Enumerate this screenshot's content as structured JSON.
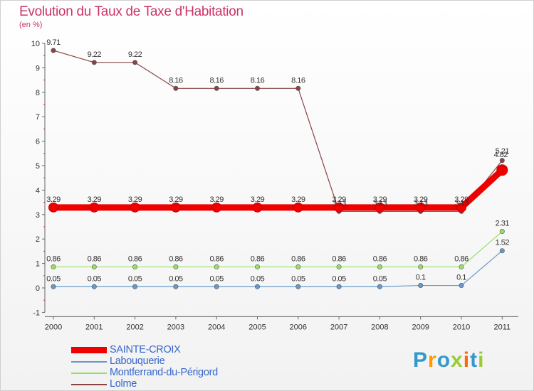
{
  "title": "Evolution du Taux de Taxe d'Habitation",
  "subtitle": "(en %)",
  "brand": {
    "text": "Proxiti",
    "letters": [
      "P",
      "r",
      "o",
      "x",
      "i",
      "t",
      "i"
    ],
    "colors": [
      "#3399cc",
      "#ff9900",
      "#3399cc",
      "#99cc33",
      "#ff6600",
      "#3399cc",
      "#99cc33"
    ]
  },
  "chart_data": {
    "type": "line",
    "title": "Evolution du Taux de Taxe d'Habitation",
    "ylabel": "(en %)",
    "xlabel": "",
    "ylim": [
      -1,
      10
    ],
    "yticks": [
      "-1",
      "0",
      "1",
      "2",
      "3",
      "4",
      "5",
      "6",
      "7",
      "8",
      "9",
      "10"
    ],
    "categories": [
      "2000",
      "2001",
      "2002",
      "2003",
      "2004",
      "2005",
      "2006",
      "2007",
      "2008",
      "2009",
      "2010",
      "2011"
    ],
    "grid": false,
    "legend_position": "bottom-left",
    "series": [
      {
        "name": "SAINTE-CROIX",
        "color": "#ee0000",
        "values": [
          3.29,
          3.29,
          3.29,
          3.29,
          3.29,
          3.29,
          3.29,
          3.29,
          3.29,
          3.29,
          3.29,
          4.82
        ],
        "labels": [
          "3.29",
          "3.29",
          "3.29",
          "3.29",
          "3.29",
          "3.29",
          "3.29",
          "3.29",
          "3.29",
          "3.29",
          "3.29",
          "4.82"
        ]
      },
      {
        "name": "Labouquerie",
        "color": "#6699cc",
        "values": [
          0.05,
          0.05,
          0.05,
          0.05,
          0.05,
          0.05,
          0.05,
          0.05,
          0.05,
          0.1,
          0.1,
          1.52
        ],
        "labels": [
          "0.05",
          "0.05",
          "0.05",
          "0.05",
          "0.05",
          "0.05",
          "0.05",
          "0.05",
          "0.05",
          "0.1",
          "0.1",
          "1.52"
        ]
      },
      {
        "name": "Montferrand-du-Périgord",
        "color": "#99dd66",
        "values": [
          0.86,
          0.86,
          0.86,
          0.86,
          0.86,
          0.86,
          0.86,
          0.86,
          0.86,
          0.86,
          0.86,
          2.31
        ],
        "labels": [
          "0.86",
          "0.86",
          "0.86",
          "0.86",
          "0.86",
          "0.86",
          "0.86",
          "0.86",
          "0.86",
          "0.86",
          "0.86",
          "2.31"
        ]
      },
      {
        "name": "Lolme",
        "color": "#884444",
        "values": [
          9.71,
          9.22,
          9.22,
          8.16,
          8.16,
          8.16,
          8.16,
          3.13,
          3.13,
          3.13,
          3.13,
          5.21
        ],
        "labels": [
          "9.71",
          "9.22",
          "9.22",
          "8.16",
          "8.16",
          "8.16",
          "8.16",
          "3.13",
          "3.13",
          "3.13",
          "3.13",
          "5.21"
        ]
      }
    ]
  }
}
